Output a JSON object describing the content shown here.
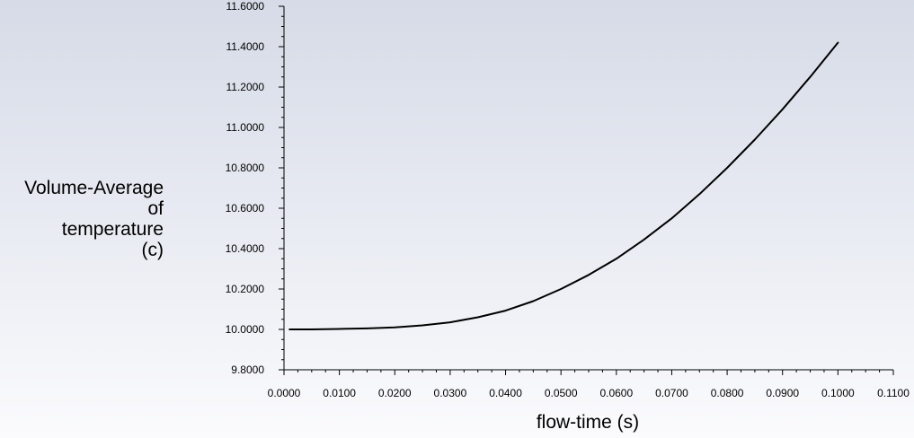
{
  "chart_data": {
    "type": "line",
    "title": "",
    "xlabel": "flow-time (s)",
    "ylabel_lines": [
      "Volume-Average",
      "of",
      "temperature",
      "(c)"
    ],
    "xlim": [
      0.0,
      0.11
    ],
    "ylim": [
      9.8,
      11.6
    ],
    "x_ticks": [
      "0.0000",
      "0.0100",
      "0.0200",
      "0.0300",
      "0.0400",
      "0.0500",
      "0.0600",
      "0.0700",
      "0.0800",
      "0.0900",
      "0.1000",
      "0.1100"
    ],
    "y_ticks": [
      "9.8000",
      "10.0000",
      "10.2000",
      "10.4000",
      "10.6000",
      "10.8000",
      "11.0000",
      "11.2000",
      "11.4000",
      "11.6000"
    ],
    "grid": false,
    "series": [
      {
        "color": "#000000",
        "x": [
          0.001,
          0.005,
          0.01,
          0.015,
          0.02,
          0.025,
          0.03,
          0.035,
          0.04,
          0.045,
          0.05,
          0.055,
          0.06,
          0.065,
          0.07,
          0.075,
          0.08,
          0.085,
          0.09,
          0.095,
          0.1
        ],
        "y": [
          10.0,
          10.0,
          10.002,
          10.005,
          10.01,
          10.02,
          10.035,
          10.06,
          10.093,
          10.14,
          10.2,
          10.27,
          10.35,
          10.445,
          10.55,
          10.67,
          10.8,
          10.94,
          11.09,
          11.25,
          11.42
        ]
      }
    ]
  }
}
